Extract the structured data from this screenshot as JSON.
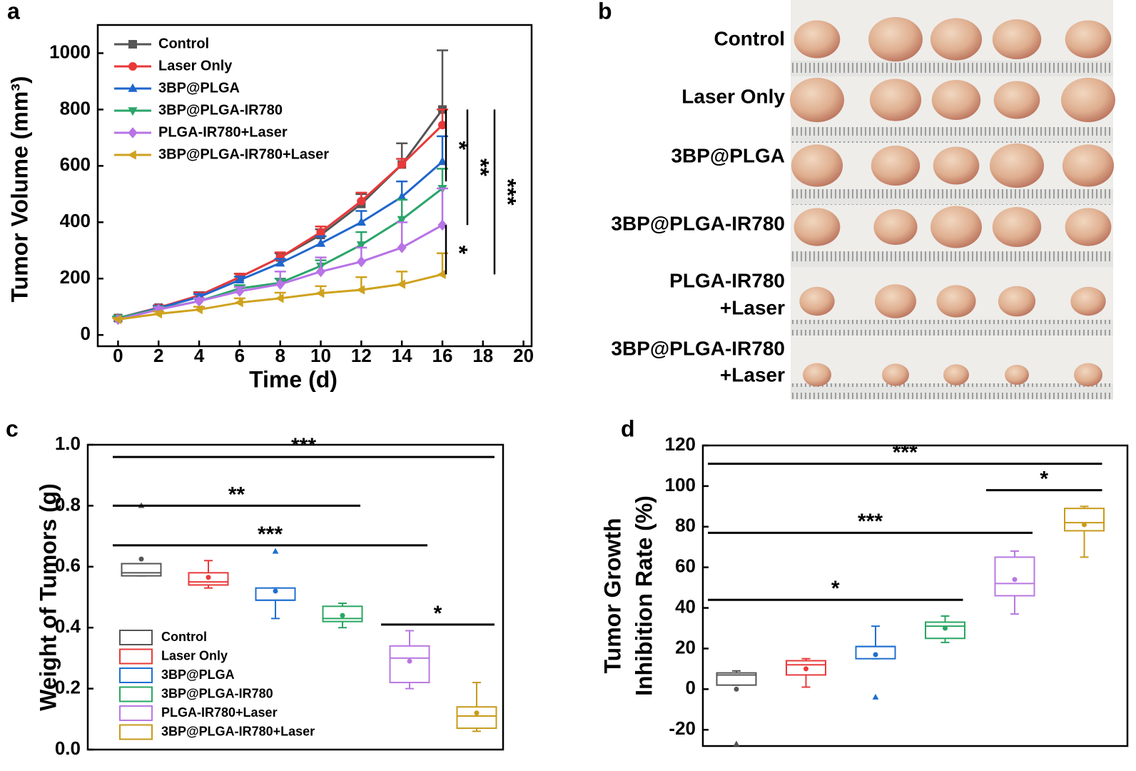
{
  "chart_data": [
    {
      "type": "line",
      "label": "a",
      "x_label": "Time (d)",
      "y_label": "Tumor Volume (mm³)",
      "x": [
        0,
        2,
        4,
        6,
        8,
        10,
        12,
        14,
        16
      ],
      "xlim": [
        -1,
        20.4
      ],
      "xticks": [
        0,
        2,
        4,
        6,
        8,
        10,
        12,
        14,
        16,
        18,
        20
      ],
      "ylim": [
        -40,
        1100
      ],
      "yticks": [
        0,
        200,
        400,
        600,
        800,
        1000
      ],
      "legend": "upper left",
      "series": [
        {
          "name": "Control",
          "color": "#555555",
          "marker": "square",
          "values": [
            60,
            97,
            140,
            205,
            275,
            355,
            465,
            605,
            800
          ],
          "errors": [
            5,
            8,
            12,
            12,
            15,
            20,
            35,
            75,
            210
          ]
        },
        {
          "name": "Laser Only",
          "color": "#e8393a",
          "marker": "circle",
          "values": [
            60,
            97,
            140,
            205,
            275,
            365,
            475,
            605,
            745
          ],
          "errors": [
            5,
            8,
            10,
            12,
            18,
            20,
            30,
            20,
            55
          ]
        },
        {
          "name": "3BP@PLGA",
          "color": "#1f66cc",
          "marker": "triangle-up",
          "values": [
            60,
            95,
            135,
            195,
            255,
            325,
            400,
            490,
            615
          ],
          "errors": [
            5,
            8,
            10,
            12,
            15,
            25,
            40,
            55,
            90
          ]
        },
        {
          "name": "3BP@PLGA-IR780",
          "color": "#2ba56a",
          "marker": "triangle-down",
          "values": [
            60,
            92,
            120,
            165,
            185,
            245,
            320,
            410,
            520
          ],
          "errors": [
            5,
            8,
            10,
            12,
            15,
            20,
            45,
            70,
            70
          ]
        },
        {
          "name": "PLGA-IR780+Laser",
          "color": "#b873e6",
          "marker": "diamond",
          "values": [
            55,
            90,
            120,
            155,
            180,
            225,
            260,
            310,
            390
          ],
          "errors": [
            5,
            8,
            10,
            15,
            45,
            50,
            50,
            90,
            130
          ]
        },
        {
          "name": "3BP@PLGA-IR780+Laser",
          "color": "#cfa21e",
          "marker": "triangle-left",
          "values": [
            55,
            75,
            90,
            115,
            130,
            148,
            160,
            180,
            215
          ],
          "errors": [
            5,
            8,
            10,
            15,
            20,
            25,
            45,
            45,
            75
          ]
        }
      ],
      "brackets": [
        {
          "label": "*",
          "range": [
            800,
            545
          ]
        },
        {
          "label": "**",
          "range": [
            800,
            390
          ]
        },
        {
          "label": "***",
          "range": [
            800,
            215
          ]
        },
        {
          "label": "*",
          "range": [
            390,
            215
          ]
        }
      ]
    },
    {
      "type": "box",
      "label": "c",
      "y_label": [
        "Weight of Tumors (g)"
      ],
      "ylim": [
        0,
        1
      ],
      "yticks": [
        {
          "value": 0,
          "label": "0.0"
        },
        0.2,
        0.4,
        0.6,
        0.8,
        {
          "value": 1,
          "label": "1.0"
        }
      ],
      "legend": "lower left",
      "series": [
        {
          "name": "Control",
          "color": "#555555",
          "min": 0.57,
          "q1": 0.57,
          "median": 0.58,
          "q3": 0.61,
          "max": 0.61,
          "mean": 0.625,
          "outliers": [
            0.8
          ]
        },
        {
          "name": "Laser Only",
          "color": "#e83a3a",
          "min": 0.53,
          "q1": 0.54,
          "median": 0.55,
          "q3": 0.58,
          "max": 0.62,
          "mean": 0.565,
          "outliers": []
        },
        {
          "name": "3BP@PLGA",
          "color": "#1f6fd0",
          "min": 0.43,
          "q1": 0.49,
          "median": 0.49,
          "q3": 0.53,
          "max": 0.53,
          "mean": 0.52,
          "outliers": [
            0.65
          ]
        },
        {
          "name": "3BP@PLGA-IR780",
          "color": "#2aa662",
          "min": 0.4,
          "q1": 0.42,
          "median": 0.43,
          "q3": 0.47,
          "max": 0.48,
          "mean": 0.44,
          "outliers": []
        },
        {
          "name": "PLGA-IR780+Laser",
          "color": "#b878e0",
          "min": 0.2,
          "q1": 0.22,
          "median": 0.3,
          "q3": 0.34,
          "max": 0.39,
          "mean": 0.29,
          "outliers": []
        },
        {
          "name": "3BP@PLGA-IR780+Laser",
          "color": "#c89a1a",
          "min": 0.06,
          "q1": 0.07,
          "median": 0.11,
          "q3": 0.14,
          "max": 0.22,
          "mean": 0.12,
          "outliers": []
        }
      ],
      "brackets": [
        {
          "label": "***",
          "from": 0,
          "to": 5,
          "y": 0.96
        },
        {
          "label": "**",
          "from": 0,
          "to": 3,
          "y": 0.8
        },
        {
          "label": "***",
          "from": 0,
          "to": 4,
          "y": 0.67
        },
        {
          "label": "*",
          "from": 4,
          "to": 5,
          "y": 0.41
        }
      ]
    },
    {
      "type": "box",
      "label": "d",
      "y_label": [
        "Tumor Growth",
        "Inhibition Rate (%)"
      ],
      "ylim": [
        -28,
        120
      ],
      "yticks": [
        -20,
        0,
        20,
        40,
        60,
        80,
        100,
        120
      ],
      "series": [
        {
          "color": "#555555",
          "min": 2,
          "q1": 2,
          "median": 7,
          "q3": 8,
          "max": 9,
          "mean": 0,
          "outliers": [
            -27
          ]
        },
        {
          "color": "#e83a3a",
          "min": 1,
          "q1": 7,
          "median": 12,
          "q3": 14,
          "max": 15,
          "mean": 10,
          "outliers": []
        },
        {
          "color": "#1f6fd0",
          "min": 15,
          "q1": 15,
          "median": 21,
          "q3": 21,
          "max": 31,
          "mean": 17,
          "outliers": [
            -4
          ]
        },
        {
          "color": "#2aa662",
          "min": 23,
          "q1": 25,
          "median": 31,
          "q3": 33,
          "max": 36,
          "mean": 30,
          "outliers": []
        },
        {
          "color": "#b878e0",
          "min": 37,
          "q1": 46,
          "median": 52,
          "q3": 65,
          "max": 68,
          "mean": 54,
          "outliers": []
        },
        {
          "color": "#c89a1a",
          "min": 65,
          "q1": 78,
          "median": 82,
          "q3": 89,
          "max": 90,
          "mean": 81,
          "outliers": []
        }
      ],
      "brackets": [
        {
          "label": "***",
          "from": 0,
          "to": 5,
          "y": 111
        },
        {
          "label": "*",
          "from": 4,
          "to": 5,
          "y": 98
        },
        {
          "label": "***",
          "from": 0,
          "to": 4,
          "y": 77
        },
        {
          "label": "*",
          "from": 0,
          "to": 3,
          "y": 44
        }
      ]
    }
  ],
  "photo_panel": {
    "label": "b",
    "rows": [
      [
        "Control"
      ],
      [
        "Laser Only"
      ],
      [
        "3BP@PLGA"
      ],
      [
        "3BP@PLGA-IR780"
      ],
      [
        "PLGA-IR780",
        "+Laser"
      ],
      [
        "3BP@PLGA-IR780",
        "+Laser"
      ]
    ]
  }
}
